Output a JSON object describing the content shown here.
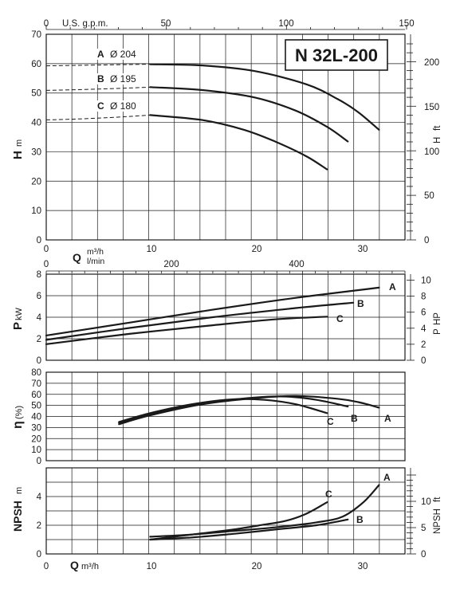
{
  "title": "N 32L-200",
  "colors": {
    "line": "#1a1a1a",
    "grid": "#1a1a1a",
    "background": "#ffffff"
  },
  "chart_data": [
    {
      "id": "head",
      "type": "line",
      "title": "N 32L-200",
      "ylabel": "H",
      "yunit": "m",
      "y2label": "H",
      "y2unit": "ft",
      "x2label": "U.S. g.p.m.",
      "xlim": [
        0,
        34.5
      ],
      "ylim": [
        0,
        70
      ],
      "x_ticks": [
        "0",
        "10",
        "20",
        "30"
      ],
      "y_ticks": [
        "0",
        "10",
        "20",
        "30",
        "40",
        "50",
        "60",
        "70"
      ],
      "x2_ticks": [
        "0",
        "50",
        "100",
        "150"
      ],
      "y2_ticks": [
        "0",
        "50",
        "100",
        "150",
        "200"
      ],
      "grid": true,
      "series": [
        {
          "name": "A",
          "diameter_label": "Ø 204",
          "x": [
            10,
            15,
            20,
            25,
            28,
            30,
            32
          ],
          "y": [
            59.8,
            59.4,
            57.5,
            53.0,
            48.0,
            43.5,
            37.5
          ]
        },
        {
          "name": "B",
          "diameter_label": "Ø 195",
          "x": [
            10,
            15,
            20,
            24,
            27,
            29
          ],
          "y": [
            52.0,
            51.0,
            48.5,
            44.0,
            38.5,
            33.5
          ]
        },
        {
          "name": "C",
          "diameter_label": "Ø 180",
          "x": [
            10,
            15,
            19,
            22,
            25,
            27
          ],
          "y": [
            42.5,
            40.8,
            37.5,
            33.5,
            28.5,
            24.0
          ]
        }
      ]
    },
    {
      "id": "power",
      "type": "line",
      "ylabel": "P",
      "yunit": "kW",
      "y2label": "P",
      "y2unit": "HP",
      "xlabel": "Q",
      "xunit": "m³/h",
      "x2unit": "l/min",
      "xlim": [
        0,
        34.5
      ],
      "ylim": [
        0,
        8
      ],
      "y_ticks": [
        "0",
        "2",
        "4",
        "6",
        "8"
      ],
      "y2_ticks": [
        "0",
        "2",
        "4",
        "6",
        "8",
        "10"
      ],
      "x2_ticks": [
        "0",
        "200",
        "400"
      ],
      "grid": true,
      "series": [
        {
          "name": "A",
          "x": [
            0,
            8,
            16,
            24,
            32
          ],
          "y": [
            2.3,
            3.5,
            4.7,
            5.8,
            6.75
          ]
        },
        {
          "name": "B",
          "x": [
            0,
            8,
            16,
            24,
            29.5
          ],
          "y": [
            1.9,
            3.0,
            4.0,
            4.85,
            5.35
          ]
        },
        {
          "name": "C",
          "x": [
            0,
            8,
            16,
            22,
            27
          ],
          "y": [
            1.5,
            2.45,
            3.25,
            3.8,
            4.05
          ]
        }
      ]
    },
    {
      "id": "efficiency",
      "type": "line",
      "ylabel": "η",
      "yunit": "(%)",
      "xlim": [
        0,
        34.5
      ],
      "ylim": [
        0,
        80
      ],
      "y_ticks": [
        "0",
        "10",
        "20",
        "30",
        "40",
        "50",
        "60",
        "70",
        "80"
      ],
      "grid": true,
      "series": [
        {
          "name": "A",
          "x": [
            7,
            10,
            15,
            20,
            24,
            28,
            30,
            32
          ],
          "y": [
            33,
            41,
            51,
            56.5,
            58.5,
            56,
            53,
            48
          ]
        },
        {
          "name": "B",
          "x": [
            7,
            10,
            15,
            20,
            23,
            26,
            29
          ],
          "y": [
            34,
            42,
            51.5,
            57,
            58,
            55,
            49
          ]
        },
        {
          "name": "C",
          "x": [
            7,
            10,
            14,
            18,
            21,
            24,
            27
          ],
          "y": [
            35,
            43,
            51,
            55.5,
            55,
            51,
            43
          ]
        }
      ]
    },
    {
      "id": "npsh",
      "type": "line",
      "ylabel": "NPSH",
      "yunit": "m",
      "y2label": "NPSH",
      "y2unit": "ft",
      "xlabel": "Q",
      "xunit": "m³/h",
      "xlim": [
        0,
        34.5
      ],
      "ylim": [
        0,
        6
      ],
      "x_ticks": [
        "0",
        "10",
        "20",
        "30"
      ],
      "y_ticks": [
        "0",
        "2",
        "4"
      ],
      "y2_ticks": [
        "0",
        "5",
        "10"
      ],
      "grid": true,
      "series": [
        {
          "name": "A",
          "x": [
            10,
            14,
            18,
            22,
            26,
            28.5,
            30.5,
            32
          ],
          "y": [
            1.2,
            1.35,
            1.6,
            1.85,
            2.2,
            2.6,
            3.6,
            4.8
          ]
        },
        {
          "name": "B",
          "x": [
            10,
            14,
            18,
            22,
            26,
            29
          ],
          "y": [
            1.0,
            1.15,
            1.4,
            1.7,
            2.0,
            2.4
          ]
        },
        {
          "name": "C",
          "x": [
            10,
            14,
            18,
            21,
            23,
            25,
            27
          ],
          "y": [
            1.0,
            1.35,
            1.7,
            2.05,
            2.3,
            2.8,
            3.6
          ]
        }
      ]
    }
  ]
}
